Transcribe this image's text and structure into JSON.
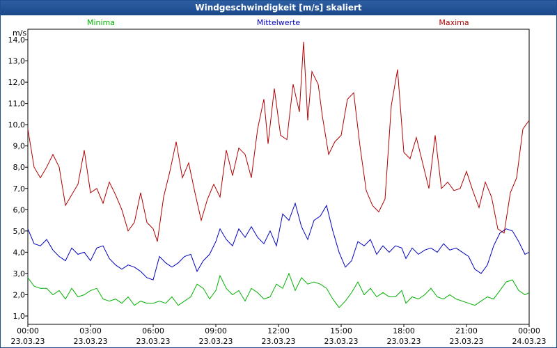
{
  "chart_data": {
    "type": "line",
    "title": "Windgeschwindigkeit [m/s] skaliert",
    "ylabel": "m/s",
    "ylim": [
      1.0,
      14.0
    ],
    "y_ticks": [
      "1,0",
      "2,0",
      "3,0",
      "4,0",
      "5,0",
      "6,0",
      "7,0",
      "8,0",
      "9,0",
      "10,0",
      "11,0",
      "12,0",
      "13,0",
      "14,0"
    ],
    "x_range_hours": [
      0,
      24
    ],
    "x_ticks": [
      {
        "time": "00:00",
        "date": "23.03.23"
      },
      {
        "time": "03:00",
        "date": "23.03.23"
      },
      {
        "time": "06:00",
        "date": "23.03.23"
      },
      {
        "time": "09:00",
        "date": "23.03.23"
      },
      {
        "time": "12:00",
        "date": "23.03.23"
      },
      {
        "time": "15:00",
        "date": "23.03.23"
      },
      {
        "time": "18:00",
        "date": "23.03.23"
      },
      {
        "time": "21:00",
        "date": "23.03.23"
      },
      {
        "time": "00:00",
        "date": "24.03.23"
      }
    ],
    "grid": true,
    "series": [
      {
        "name": "Minima",
        "color": "#00b000",
        "points": [
          [
            0,
            2.8
          ],
          [
            0.3,
            2.4
          ],
          [
            0.6,
            2.3
          ],
          [
            0.9,
            2.3
          ],
          [
            1.2,
            2.0
          ],
          [
            1.5,
            2.2
          ],
          [
            1.8,
            1.8
          ],
          [
            2.1,
            2.3
          ],
          [
            2.4,
            1.9
          ],
          [
            2.7,
            2.0
          ],
          [
            3.0,
            2.2
          ],
          [
            3.3,
            2.3
          ],
          [
            3.6,
            1.8
          ],
          [
            3.9,
            1.7
          ],
          [
            4.2,
            1.8
          ],
          [
            4.5,
            1.6
          ],
          [
            4.8,
            1.9
          ],
          [
            5.1,
            1.5
          ],
          [
            5.4,
            1.7
          ],
          [
            5.7,
            1.6
          ],
          [
            6.0,
            1.6
          ],
          [
            6.3,
            1.7
          ],
          [
            6.6,
            1.6
          ],
          [
            6.9,
            1.9
          ],
          [
            7.2,
            1.5
          ],
          [
            7.5,
            1.7
          ],
          [
            7.8,
            1.9
          ],
          [
            8.1,
            2.5
          ],
          [
            8.4,
            2.3
          ],
          [
            8.7,
            1.8
          ],
          [
            9.0,
            2.2
          ],
          [
            9.2,
            2.9
          ],
          [
            9.5,
            2.3
          ],
          [
            9.8,
            2.0
          ],
          [
            10.1,
            2.2
          ],
          [
            10.4,
            1.7
          ],
          [
            10.7,
            2.3
          ],
          [
            11.0,
            2.1
          ],
          [
            11.3,
            1.8
          ],
          [
            11.6,
            1.9
          ],
          [
            11.9,
            2.5
          ],
          [
            12.2,
            2.3
          ],
          [
            12.5,
            3.0
          ],
          [
            12.8,
            2.2
          ],
          [
            13.1,
            2.8
          ],
          [
            13.4,
            2.5
          ],
          [
            13.7,
            2.6
          ],
          [
            14.0,
            2.5
          ],
          [
            14.3,
            2.3
          ],
          [
            14.6,
            1.8
          ],
          [
            14.9,
            1.4
          ],
          [
            15.2,
            1.7
          ],
          [
            15.5,
            2.1
          ],
          [
            15.8,
            2.6
          ],
          [
            16.1,
            2.0
          ],
          [
            16.4,
            2.3
          ],
          [
            16.7,
            1.9
          ],
          [
            17.0,
            2.1
          ],
          [
            17.3,
            1.9
          ],
          [
            17.6,
            1.9
          ],
          [
            17.9,
            2.2
          ],
          [
            18.1,
            1.6
          ],
          [
            18.4,
            1.9
          ],
          [
            18.7,
            1.8
          ],
          [
            19.0,
            2.0
          ],
          [
            19.3,
            2.3
          ],
          [
            19.6,
            1.9
          ],
          [
            19.9,
            1.8
          ],
          [
            20.2,
            2.0
          ],
          [
            20.5,
            1.8
          ],
          [
            20.8,
            1.7
          ],
          [
            21.1,
            1.6
          ],
          [
            21.4,
            1.5
          ],
          [
            21.7,
            1.7
          ],
          [
            22.0,
            1.9
          ],
          [
            22.3,
            1.8
          ],
          [
            22.6,
            2.2
          ],
          [
            22.9,
            2.6
          ],
          [
            23.2,
            2.7
          ],
          [
            23.5,
            2.2
          ],
          [
            23.8,
            2.0
          ],
          [
            24.0,
            2.1
          ]
        ]
      },
      {
        "name": "Mittelwerte",
        "color": "#0000c0",
        "points": [
          [
            0,
            5.1
          ],
          [
            0.3,
            4.4
          ],
          [
            0.6,
            4.3
          ],
          [
            0.9,
            4.6
          ],
          [
            1.2,
            4.1
          ],
          [
            1.5,
            3.8
          ],
          [
            1.8,
            3.6
          ],
          [
            2.1,
            4.2
          ],
          [
            2.4,
            3.9
          ],
          [
            2.7,
            4.0
          ],
          [
            3.0,
            3.6
          ],
          [
            3.3,
            4.2
          ],
          [
            3.6,
            4.3
          ],
          [
            3.9,
            3.7
          ],
          [
            4.2,
            3.4
          ],
          [
            4.5,
            3.2
          ],
          [
            4.8,
            3.4
          ],
          [
            5.1,
            3.3
          ],
          [
            5.4,
            3.1
          ],
          [
            5.7,
            2.8
          ],
          [
            6.0,
            2.7
          ],
          [
            6.3,
            3.8
          ],
          [
            6.6,
            3.5
          ],
          [
            6.9,
            3.3
          ],
          [
            7.2,
            3.5
          ],
          [
            7.5,
            3.8
          ],
          [
            7.8,
            3.9
          ],
          [
            8.1,
            3.1
          ],
          [
            8.4,
            3.6
          ],
          [
            8.7,
            3.9
          ],
          [
            9.0,
            4.5
          ],
          [
            9.2,
            5.1
          ],
          [
            9.5,
            4.6
          ],
          [
            9.8,
            4.3
          ],
          [
            10.1,
            5.1
          ],
          [
            10.4,
            4.7
          ],
          [
            10.7,
            5.2
          ],
          [
            11.0,
            4.7
          ],
          [
            11.3,
            4.4
          ],
          [
            11.6,
            5.0
          ],
          [
            11.9,
            4.3
          ],
          [
            12.2,
            5.8
          ],
          [
            12.5,
            5.5
          ],
          [
            12.8,
            6.3
          ],
          [
            13.1,
            5.2
          ],
          [
            13.4,
            4.6
          ],
          [
            13.7,
            5.5
          ],
          [
            14.0,
            5.7
          ],
          [
            14.3,
            6.2
          ],
          [
            14.6,
            5.0
          ],
          [
            14.9,
            4.0
          ],
          [
            15.2,
            3.3
          ],
          [
            15.5,
            3.6
          ],
          [
            15.8,
            4.5
          ],
          [
            16.1,
            4.3
          ],
          [
            16.4,
            4.6
          ],
          [
            16.7,
            3.9
          ],
          [
            17.0,
            4.3
          ],
          [
            17.3,
            4.0
          ],
          [
            17.6,
            4.3
          ],
          [
            17.9,
            4.2
          ],
          [
            18.1,
            3.7
          ],
          [
            18.4,
            4.2
          ],
          [
            18.7,
            3.9
          ],
          [
            19.0,
            4.1
          ],
          [
            19.3,
            4.2
          ],
          [
            19.6,
            4.0
          ],
          [
            19.9,
            4.4
          ],
          [
            20.2,
            4.1
          ],
          [
            20.5,
            4.2
          ],
          [
            20.8,
            4.0
          ],
          [
            21.1,
            3.8
          ],
          [
            21.4,
            3.2
          ],
          [
            21.7,
            3.0
          ],
          [
            22.0,
            3.4
          ],
          [
            22.3,
            4.3
          ],
          [
            22.6,
            4.9
          ],
          [
            22.9,
            5.1
          ],
          [
            23.2,
            5.0
          ],
          [
            23.5,
            4.5
          ],
          [
            23.8,
            3.9
          ],
          [
            24.0,
            4.0
          ]
        ]
      },
      {
        "name": "Maxima",
        "color": "#b00000",
        "points": [
          [
            0,
            9.8
          ],
          [
            0.3,
            8.0
          ],
          [
            0.6,
            7.5
          ],
          [
            0.9,
            8.0
          ],
          [
            1.2,
            8.6
          ],
          [
            1.5,
            8.0
          ],
          [
            1.8,
            6.2
          ],
          [
            2.1,
            6.7
          ],
          [
            2.4,
            7.2
          ],
          [
            2.7,
            8.8
          ],
          [
            3.0,
            6.8
          ],
          [
            3.3,
            7.0
          ],
          [
            3.6,
            6.3
          ],
          [
            3.9,
            7.3
          ],
          [
            4.2,
            6.7
          ],
          [
            4.5,
            6.0
          ],
          [
            4.8,
            5.0
          ],
          [
            5.1,
            5.4
          ],
          [
            5.4,
            6.8
          ],
          [
            5.7,
            5.4
          ],
          [
            6.0,
            5.1
          ],
          [
            6.2,
            4.5
          ],
          [
            6.5,
            6.6
          ],
          [
            6.8,
            7.8
          ],
          [
            7.1,
            9.2
          ],
          [
            7.4,
            7.5
          ],
          [
            7.7,
            8.2
          ],
          [
            8.0,
            6.8
          ],
          [
            8.3,
            5.5
          ],
          [
            8.6,
            6.5
          ],
          [
            8.9,
            7.2
          ],
          [
            9.2,
            6.6
          ],
          [
            9.5,
            8.8
          ],
          [
            9.8,
            7.6
          ],
          [
            10.1,
            8.9
          ],
          [
            10.4,
            8.6
          ],
          [
            10.7,
            7.5
          ],
          [
            11.0,
            9.8
          ],
          [
            11.3,
            11.2
          ],
          [
            11.5,
            9.1
          ],
          [
            11.8,
            11.7
          ],
          [
            12.1,
            9.5
          ],
          [
            12.4,
            9.3
          ],
          [
            12.7,
            11.9
          ],
          [
            13.0,
            10.6
          ],
          [
            13.2,
            13.9
          ],
          [
            13.4,
            10.2
          ],
          [
            13.6,
            12.5
          ],
          [
            13.9,
            11.9
          ],
          [
            14.1,
            10.4
          ],
          [
            14.4,
            8.6
          ],
          [
            14.7,
            9.2
          ],
          [
            15.0,
            9.5
          ],
          [
            15.3,
            11.2
          ],
          [
            15.6,
            11.5
          ],
          [
            15.9,
            9.0
          ],
          [
            16.2,
            6.9
          ],
          [
            16.5,
            6.2
          ],
          [
            16.8,
            5.9
          ],
          [
            17.1,
            6.5
          ],
          [
            17.4,
            10.9
          ],
          [
            17.7,
            12.6
          ],
          [
            18.0,
            8.7
          ],
          [
            18.3,
            8.4
          ],
          [
            18.6,
            9.4
          ],
          [
            18.9,
            8.2
          ],
          [
            19.2,
            7.0
          ],
          [
            19.5,
            9.5
          ],
          [
            19.8,
            7.0
          ],
          [
            20.1,
            7.3
          ],
          [
            20.4,
            6.9
          ],
          [
            20.7,
            7.0
          ],
          [
            21.0,
            7.8
          ],
          [
            21.3,
            6.9
          ],
          [
            21.6,
            6.1
          ],
          [
            21.9,
            7.3
          ],
          [
            22.2,
            6.6
          ],
          [
            22.5,
            5.1
          ],
          [
            22.8,
            4.9
          ],
          [
            23.1,
            6.8
          ],
          [
            23.4,
            7.5
          ],
          [
            23.7,
            9.8
          ],
          [
            24.0,
            10.2
          ]
        ]
      }
    ]
  }
}
